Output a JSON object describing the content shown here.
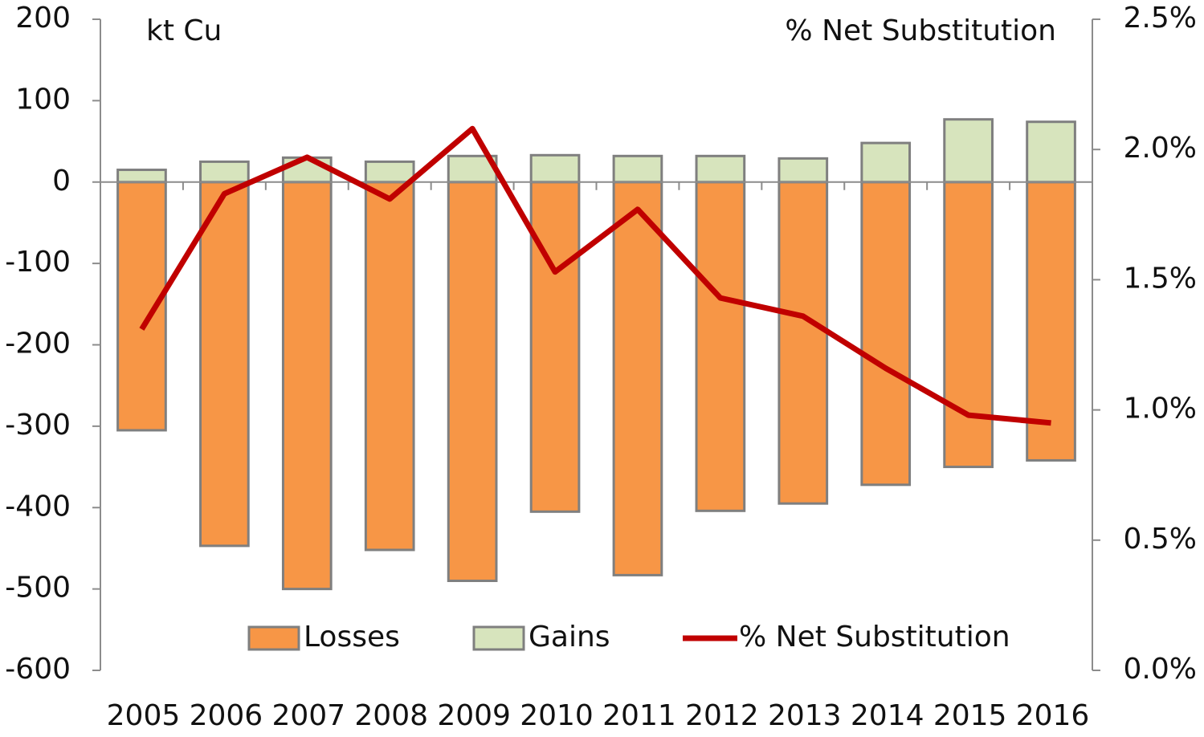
{
  "chart_data": {
    "type": "bar-line",
    "y_label": "kt Cu",
    "y2_label": "% Net Substitution",
    "categories": [
      "2005",
      "2006",
      "2007",
      "2008",
      "2009",
      "2010",
      "2011",
      "2012",
      "2013",
      "2014",
      "2015",
      "2016"
    ],
    "series": [
      {
        "name": "Losses",
        "color": "#f79646",
        "type": "bar",
        "values": [
          -305,
          -447,
          -500,
          -452,
          -490,
          -405,
          -483,
          -404,
          -395,
          -372,
          -350,
          -342
        ]
      },
      {
        "name": "Gains",
        "color": "#d7e4bd",
        "type": "bar",
        "values": [
          15,
          25,
          30,
          25,
          32,
          33,
          32,
          32,
          29,
          48,
          77,
          74
        ]
      },
      {
        "name": "% Net Substitution",
        "color": "#c00000",
        "type": "line",
        "axis": "y2",
        "values": [
          1.31,
          1.83,
          1.97,
          1.81,
          2.08,
          1.53,
          1.77,
          1.43,
          1.36,
          1.16,
          0.98,
          0.95
        ]
      }
    ],
    "ylim": [
      -600,
      200
    ],
    "yticks": [
      -600,
      -500,
      -400,
      -300,
      -200,
      -100,
      0,
      100,
      200
    ],
    "y2lim": [
      0,
      2.5
    ],
    "y2ticks": [
      {
        "value": 0,
        "label": "0.0%"
      },
      {
        "value": 0.5,
        "label": "0.5%"
      },
      {
        "value": 1,
        "label": "1.0%"
      },
      {
        "value": 1.5,
        "label": "1.5%"
      },
      {
        "value": 2,
        "label": "2.0%"
      },
      {
        "value": 2.5,
        "label": "2.5%"
      }
    ],
    "legend": "bottom"
  }
}
